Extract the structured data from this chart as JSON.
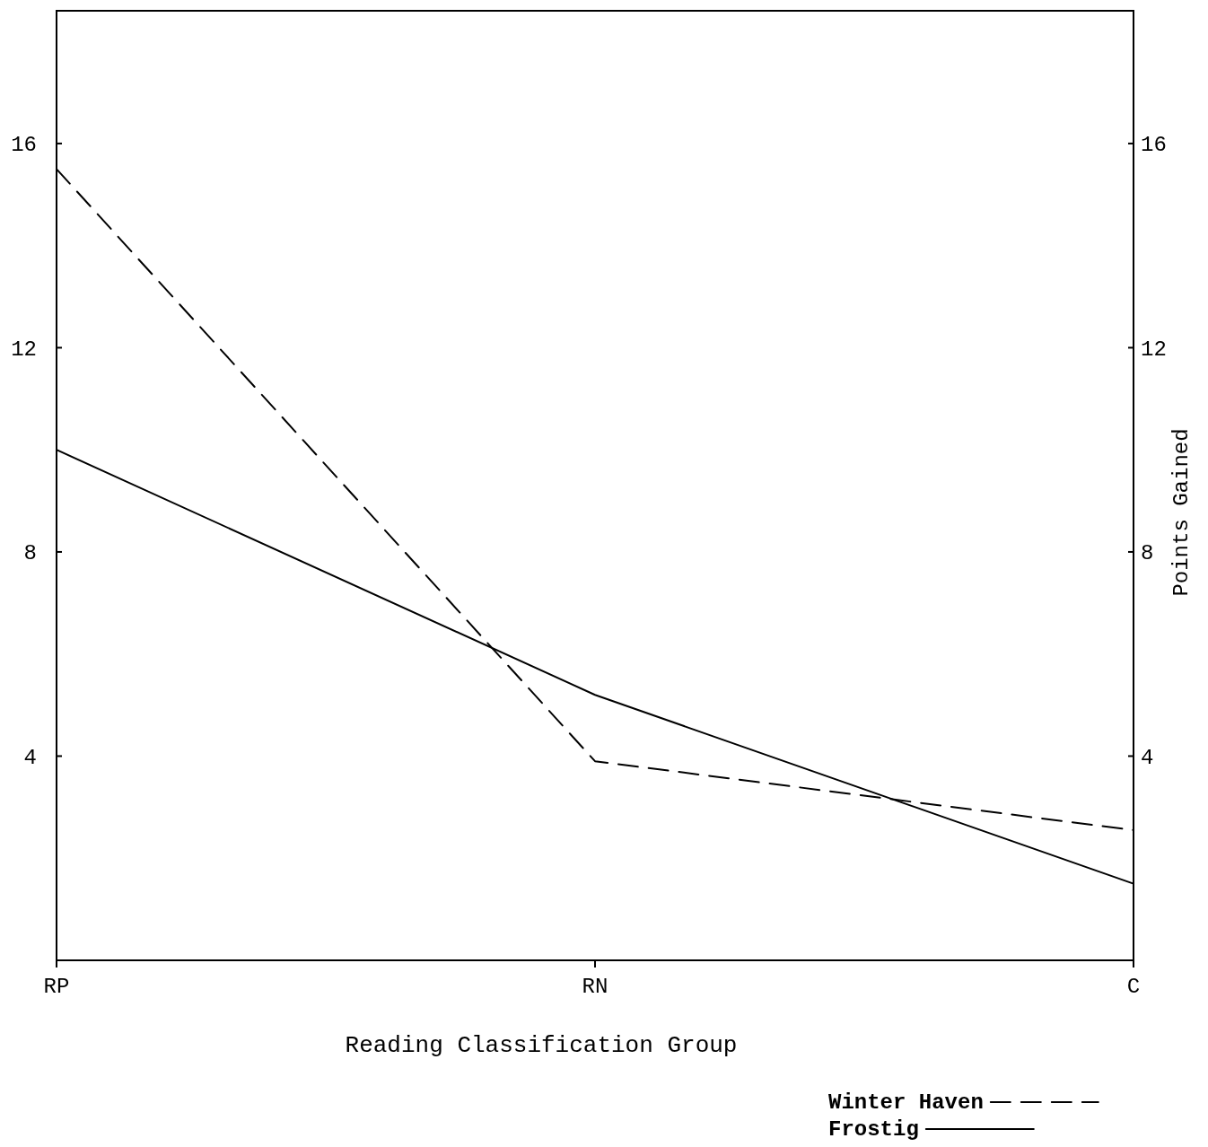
{
  "chart_data": {
    "type": "line",
    "xlabel": "Reading Classification Group",
    "y2label": "Points Gained",
    "categories": [
      "RP",
      "RN",
      "C"
    ],
    "series": [
      {
        "name": "Winter Haven",
        "color": "#000000",
        "line_style": "dashed",
        "values": [
          15.5,
          3.9,
          2.55
        ]
      },
      {
        "name": "Frostig",
        "color": "#000000",
        "line_style": "solid",
        "values": [
          10.0,
          5.2,
          1.5
        ]
      }
    ],
    "ylim": [
      0,
      18.6
    ],
    "yticks": [
      4,
      8,
      12,
      16
    ],
    "y2lim": [
      0,
      18.6
    ],
    "y2ticks": [
      4,
      8,
      12,
      16
    ],
    "legend": "bottom right",
    "grid": false,
    "marker": "none"
  }
}
